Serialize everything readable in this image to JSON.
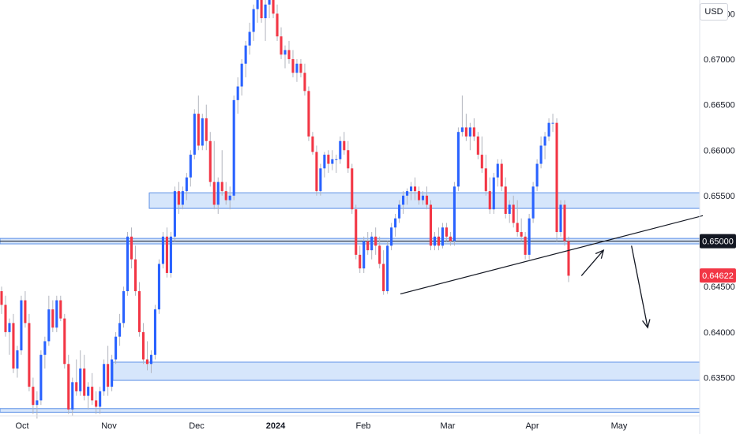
{
  "currency_label": "USD",
  "chart_data": {
    "type": "candlestick",
    "title": "",
    "y_ticks": [
      "0.63500",
      "0.64000",
      "0.64500",
      "0.65000",
      "0.65500",
      "0.66000",
      "0.66500",
      "0.67000",
      "0.67500"
    ],
    "x_ticks": [
      {
        "label": "Oct",
        "bold": false
      },
      {
        "label": "Nov",
        "bold": false
      },
      {
        "label": "Dec",
        "bold": false
      },
      {
        "label": "2024",
        "bold": true
      },
      {
        "label": "Feb",
        "bold": false
      },
      {
        "label": "Mar",
        "bold": false
      },
      {
        "label": "Apr",
        "bold": false
      },
      {
        "label": "May",
        "bold": false
      }
    ],
    "ylim": [
      0.6308,
      0.6765
    ],
    "price_labels": [
      {
        "text": "0.65000",
        "value": 0.65,
        "style": "dark"
      },
      {
        "text": "0.64622",
        "value": 0.64622,
        "style": "red"
      }
    ],
    "colors": {
      "up": "#2962ff",
      "down": "#f23645",
      "zone_fill": "#d6e6fb",
      "zone_stroke": "#5b8fe6",
      "line": "#131722"
    },
    "zones": [
      {
        "label": "zone-0.6545",
        "y_top": 0.6553,
        "y_bottom": 0.6536
      },
      {
        "label": "zone-0.6500",
        "y_top": 0.6503,
        "y_bottom": 0.6497
      },
      {
        "label": "zone-0.6357",
        "y_top": 0.6367,
        "y_bottom": 0.6347
      },
      {
        "label": "zone-0.6315",
        "y_top": 0.6316,
        "y_bottom": 0.6312
      }
    ],
    "level_line": 0.65,
    "candles": [
      [
        0.6445,
        0.645,
        0.642,
        0.643
      ],
      [
        0.643,
        0.644,
        0.6395,
        0.64
      ],
      [
        0.64,
        0.6415,
        0.6375,
        0.641
      ],
      [
        0.641,
        0.642,
        0.6355,
        0.636
      ],
      [
        0.636,
        0.6385,
        0.635,
        0.638
      ],
      [
        0.638,
        0.644,
        0.6375,
        0.6435
      ],
      [
        0.6435,
        0.6445,
        0.6405,
        0.641
      ],
      [
        0.641,
        0.642,
        0.6335,
        0.634
      ],
      [
        0.634,
        0.635,
        0.631,
        0.632
      ],
      [
        0.632,
        0.6335,
        0.6305,
        0.6325
      ],
      [
        0.6325,
        0.638,
        0.632,
        0.6375
      ],
      [
        0.6375,
        0.6395,
        0.636,
        0.639
      ],
      [
        0.639,
        0.644,
        0.6385,
        0.6425
      ],
      [
        0.6425,
        0.6435,
        0.64,
        0.6405
      ],
      [
        0.6405,
        0.644,
        0.64,
        0.6435
      ],
      [
        0.6435,
        0.644,
        0.6412,
        0.6415
      ],
      [
        0.6415,
        0.642,
        0.636,
        0.6365
      ],
      [
        0.6365,
        0.6375,
        0.631,
        0.6315
      ],
      [
        0.6315,
        0.635,
        0.6308,
        0.6345
      ],
      [
        0.6345,
        0.637,
        0.633,
        0.6335
      ],
      [
        0.6335,
        0.638,
        0.633,
        0.636
      ],
      [
        0.636,
        0.6375,
        0.6325,
        0.633
      ],
      [
        0.633,
        0.6345,
        0.6315,
        0.634
      ],
      [
        0.634,
        0.6355,
        0.632,
        0.6325
      ],
      [
        0.6325,
        0.6335,
        0.631,
        0.6318
      ],
      [
        0.6318,
        0.634,
        0.631,
        0.6335
      ],
      [
        0.6335,
        0.637,
        0.633,
        0.6365
      ],
      [
        0.6365,
        0.6385,
        0.633,
        0.634
      ],
      [
        0.634,
        0.6375,
        0.6335,
        0.637
      ],
      [
        0.637,
        0.64,
        0.6365,
        0.6395
      ],
      [
        0.6395,
        0.642,
        0.6385,
        0.641
      ],
      [
        0.641,
        0.645,
        0.6405,
        0.6445
      ],
      [
        0.6445,
        0.651,
        0.644,
        0.6505
      ],
      [
        0.6505,
        0.6515,
        0.647,
        0.648
      ],
      [
        0.648,
        0.6495,
        0.644,
        0.6445
      ],
      [
        0.6445,
        0.6455,
        0.6395,
        0.64
      ],
      [
        0.64,
        0.641,
        0.6365,
        0.637
      ],
      [
        0.637,
        0.639,
        0.6358,
        0.6365
      ],
      [
        0.6365,
        0.638,
        0.6355,
        0.6375
      ],
      [
        0.6375,
        0.643,
        0.637,
        0.6425
      ],
      [
        0.6425,
        0.648,
        0.642,
        0.6475
      ],
      [
        0.6475,
        0.651,
        0.647,
        0.6505
      ],
      [
        0.6505,
        0.6515,
        0.646,
        0.6465
      ],
      [
        0.6465,
        0.651,
        0.646,
        0.6505
      ],
      [
        0.6505,
        0.656,
        0.65,
        0.6555
      ],
      [
        0.6555,
        0.6565,
        0.653,
        0.654
      ],
      [
        0.654,
        0.656,
        0.6535,
        0.6555
      ],
      [
        0.6555,
        0.6575,
        0.6545,
        0.657
      ],
      [
        0.657,
        0.66,
        0.656,
        0.6595
      ],
      [
        0.6595,
        0.6645,
        0.659,
        0.664
      ],
      [
        0.664,
        0.666,
        0.66,
        0.6605
      ],
      [
        0.6605,
        0.664,
        0.66,
        0.6635
      ],
      [
        0.6635,
        0.665,
        0.66,
        0.661
      ],
      [
        0.661,
        0.662,
        0.656,
        0.6565
      ],
      [
        0.6565,
        0.661,
        0.6535,
        0.654
      ],
      [
        0.654,
        0.657,
        0.653,
        0.6565
      ],
      [
        0.6565,
        0.66,
        0.655,
        0.6555
      ],
      [
        0.6555,
        0.6565,
        0.654,
        0.6545
      ],
      [
        0.6545,
        0.656,
        0.6535,
        0.655
      ],
      [
        0.655,
        0.666,
        0.6545,
        0.6655
      ],
      [
        0.6655,
        0.668,
        0.664,
        0.667
      ],
      [
        0.667,
        0.67,
        0.666,
        0.6695
      ],
      [
        0.6695,
        0.672,
        0.668,
        0.6715
      ],
      [
        0.6715,
        0.674,
        0.6705,
        0.673
      ],
      [
        0.673,
        0.676,
        0.672,
        0.6755
      ],
      [
        0.6755,
        0.6775,
        0.674,
        0.677
      ],
      [
        0.677,
        0.678,
        0.674,
        0.6745
      ],
      [
        0.6745,
        0.6765,
        0.672,
        0.676
      ],
      [
        0.676,
        0.6775,
        0.6745,
        0.677
      ],
      [
        0.677,
        0.6775,
        0.6745,
        0.675
      ],
      [
        0.675,
        0.676,
        0.672,
        0.6725
      ],
      [
        0.6725,
        0.6735,
        0.67,
        0.6705
      ],
      [
        0.6705,
        0.6715,
        0.669,
        0.671
      ],
      [
        0.671,
        0.672,
        0.6695,
        0.67
      ],
      [
        0.67,
        0.671,
        0.668,
        0.6685
      ],
      [
        0.6685,
        0.67,
        0.6675,
        0.6695
      ],
      [
        0.6695,
        0.67,
        0.668,
        0.6685
      ],
      [
        0.6685,
        0.6695,
        0.666,
        0.6665
      ],
      [
        0.6665,
        0.667,
        0.661,
        0.6615
      ],
      [
        0.6615,
        0.662,
        0.6595,
        0.6598
      ],
      [
        0.6598,
        0.6605,
        0.655,
        0.6555
      ],
      [
        0.6555,
        0.6585,
        0.655,
        0.658
      ],
      [
        0.658,
        0.6598,
        0.657,
        0.6595
      ],
      [
        0.6595,
        0.66,
        0.6575,
        0.6585
      ],
      [
        0.6585,
        0.66,
        0.6578,
        0.659
      ],
      [
        0.659,
        0.6595,
        0.6575,
        0.659
      ],
      [
        0.659,
        0.6615,
        0.6585,
        0.661
      ],
      [
        0.661,
        0.662,
        0.6595,
        0.66
      ],
      [
        0.66,
        0.661,
        0.6575,
        0.658
      ],
      [
        0.658,
        0.6585,
        0.653,
        0.6535
      ],
      [
        0.6535,
        0.654,
        0.648,
        0.6485
      ],
      [
        0.6485,
        0.6495,
        0.6465,
        0.647
      ],
      [
        0.647,
        0.6505,
        0.6465,
        0.65
      ],
      [
        0.65,
        0.651,
        0.6485,
        0.649
      ],
      [
        0.649,
        0.651,
        0.648,
        0.6505
      ],
      [
        0.6505,
        0.6515,
        0.6485,
        0.6495
      ],
      [
        0.6495,
        0.6505,
        0.647,
        0.6475
      ],
      [
        0.6475,
        0.649,
        0.6441,
        0.6445
      ],
      [
        0.6445,
        0.65,
        0.6442,
        0.6495
      ],
      [
        0.6495,
        0.652,
        0.649,
        0.6515
      ],
      [
        0.6515,
        0.653,
        0.6505,
        0.6525
      ],
      [
        0.6525,
        0.6545,
        0.652,
        0.654
      ],
      [
        0.654,
        0.6555,
        0.653,
        0.655
      ],
      [
        0.655,
        0.6558,
        0.654,
        0.6555
      ],
      [
        0.6555,
        0.6565,
        0.6545,
        0.656
      ],
      [
        0.656,
        0.657,
        0.6545,
        0.6555
      ],
      [
        0.6555,
        0.656,
        0.654,
        0.6545
      ],
      [
        0.6545,
        0.6555,
        0.654,
        0.655
      ],
      [
        0.655,
        0.656,
        0.6535,
        0.654
      ],
      [
        0.654,
        0.6545,
        0.649,
        0.6495
      ],
      [
        0.6495,
        0.651,
        0.649,
        0.6505
      ],
      [
        0.6505,
        0.6515,
        0.649,
        0.6495
      ],
      [
        0.6495,
        0.652,
        0.6492,
        0.6515
      ],
      [
        0.6515,
        0.652,
        0.65,
        0.6505
      ],
      [
        0.6505,
        0.651,
        0.6495,
        0.65
      ],
      [
        0.65,
        0.6565,
        0.6495,
        0.656
      ],
      [
        0.656,
        0.6625,
        0.6555,
        0.662
      ],
      [
        0.662,
        0.666,
        0.6615,
        0.6625
      ],
      [
        0.6625,
        0.664,
        0.661,
        0.6615
      ],
      [
        0.6615,
        0.663,
        0.66,
        0.6625
      ],
      [
        0.6625,
        0.6635,
        0.661,
        0.6615
      ],
      [
        0.6615,
        0.662,
        0.659,
        0.6595
      ],
      [
        0.6595,
        0.6615,
        0.6575,
        0.658
      ],
      [
        0.658,
        0.6595,
        0.655,
        0.6555
      ],
      [
        0.6555,
        0.657,
        0.653,
        0.6535
      ],
      [
        0.6535,
        0.6575,
        0.653,
        0.657
      ],
      [
        0.657,
        0.659,
        0.656,
        0.6585
      ],
      [
        0.6585,
        0.659,
        0.6555,
        0.656
      ],
      [
        0.656,
        0.657,
        0.6525,
        0.653
      ],
      [
        0.653,
        0.6545,
        0.652,
        0.654
      ],
      [
        0.654,
        0.655,
        0.6515,
        0.652
      ],
      [
        0.652,
        0.6545,
        0.6505,
        0.651
      ],
      [
        0.651,
        0.6525,
        0.65,
        0.6505
      ],
      [
        0.6505,
        0.651,
        0.648,
        0.6485
      ],
      [
        0.6485,
        0.653,
        0.648,
        0.6525
      ],
      [
        0.6525,
        0.6565,
        0.652,
        0.656
      ],
      [
        0.656,
        0.659,
        0.6555,
        0.6585
      ],
      [
        0.6585,
        0.6615,
        0.658,
        0.6605
      ],
      [
        0.6605,
        0.662,
        0.659,
        0.6615
      ],
      [
        0.6615,
        0.6635,
        0.661,
        0.663
      ],
      [
        0.663,
        0.664,
        0.662,
        0.663
      ],
      [
        0.663,
        0.6635,
        0.65,
        0.651
      ],
      [
        0.651,
        0.6545,
        0.6505,
        0.654
      ],
      [
        0.654,
        0.6545,
        0.6495,
        0.65
      ],
      [
        0.65,
        0.6505,
        0.6455,
        0.6462
      ]
    ],
    "annotations": [
      {
        "kind": "trendline",
        "x0": 0.544,
        "y0": 0.6442,
        "x1": 0.955,
        "y1": 0.6528
      },
      {
        "kind": "arrow",
        "x0": 0.79,
        "y0": 0.6462,
        "x1": 0.82,
        "y1": 0.649
      },
      {
        "kind": "arrow",
        "x0": 0.858,
        "y0": 0.6495,
        "x1": 0.88,
        "y1": 0.6405
      }
    ]
  }
}
